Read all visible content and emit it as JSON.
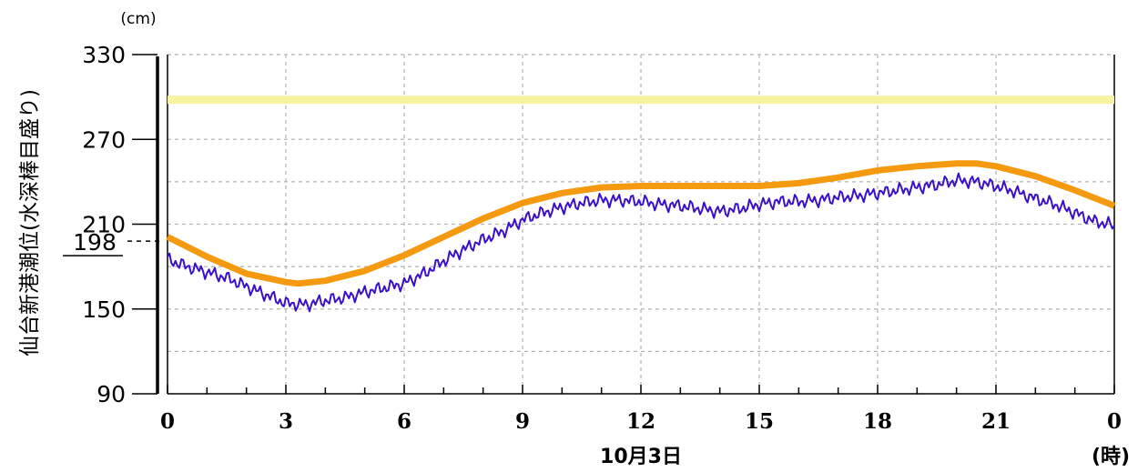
{
  "chart_data": {
    "type": "line",
    "ylabel": "仙台新港潮位(水深棒目盛り)",
    "yunit": "(cm)",
    "xlabel": "10月3日",
    "xunit": "(時)",
    "ylim": [
      90,
      330
    ],
    "yticks": [
      "330",
      "270",
      "210",
      "150",
      "90"
    ],
    "xticks": [
      "0",
      "3",
      "6",
      "9",
      "12",
      "15",
      "18",
      "21",
      "0"
    ],
    "x_range": [
      0,
      24
    ],
    "grid": true,
    "reference_mark": {
      "value": 198,
      "label": "198"
    },
    "colors": {
      "threshold": "#f8f3a0",
      "predicted": "#f59a0f",
      "observed": "#3a10c8",
      "grid": "#b4b4b4"
    },
    "series": [
      {
        "kind": "threshold",
        "x": [
          0,
          24
        ],
        "values": [
          298,
          298
        ]
      },
      {
        "kind": "predicted",
        "x": [
          0,
          1,
          2,
          3,
          3.3,
          4,
          5,
          6,
          7,
          8,
          9,
          10,
          11,
          12,
          13,
          14,
          15,
          16,
          17,
          18,
          19,
          20,
          20.5,
          21,
          22,
          23,
          24
        ],
        "values": [
          201,
          187,
          175,
          169,
          168,
          170,
          177,
          188,
          201,
          214,
          225,
          232,
          236,
          237,
          237,
          237,
          237,
          239,
          243,
          248,
          251,
          253,
          253,
          251,
          244,
          234,
          223
        ]
      },
      {
        "kind": "observed",
        "x": [
          0,
          0.5,
          1,
          1.5,
          2,
          2.5,
          3,
          3.5,
          4,
          4.5,
          5,
          5.5,
          6,
          6.5,
          7,
          7.5,
          8,
          8.5,
          9,
          9.5,
          10,
          10.5,
          11,
          11.5,
          12,
          12.5,
          13,
          13.5,
          14,
          14.5,
          15,
          15.5,
          16,
          16.5,
          17,
          17.5,
          18,
          18.5,
          19,
          19.5,
          20,
          20.5,
          21,
          21.5,
          22,
          22.5,
          23,
          23.5,
          24
        ],
        "values": [
          185,
          180,
          176,
          172,
          166,
          160,
          154,
          153,
          156,
          158,
          162,
          165,
          168,
          175,
          184,
          192,
          199,
          205,
          213,
          218,
          222,
          225,
          227,
          227,
          226,
          224,
          223,
          221,
          219,
          221,
          224,
          226,
          226,
          227,
          229,
          230,
          232,
          234,
          236,
          238,
          241,
          240,
          237,
          233,
          228,
          224,
          218,
          212,
          209
        ]
      }
    ]
  }
}
